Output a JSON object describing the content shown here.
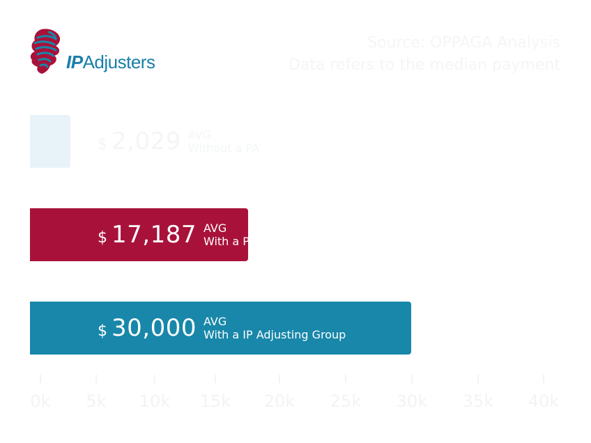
{
  "logo": {
    "ip": "IP",
    "rest": "Adjusters",
    "alt": "IP Adjusters logo"
  },
  "source": {
    "line1": "Source: OPPAGA Analysis",
    "line2": "Data refers to the median payment"
  },
  "colors": {
    "without_pa": "#e8f3f9",
    "with_pa": "#a8123a",
    "with_ip": "#1887a9",
    "faint_text": "#f3f5f7",
    "axis": "#f1f3f5"
  },
  "chart_data": {
    "type": "bar",
    "orientation": "horizontal",
    "categories": [
      "Without a PA",
      "With a PA",
      "With a IP Adjusting Group"
    ],
    "values": [
      2029,
      17187,
      30000
    ],
    "display_values": [
      "2,029",
      "17,187",
      "30,000"
    ],
    "currency": "$",
    "value_tag": "AVG",
    "xlim": [
      0,
      40000
    ],
    "x_ticks": [
      "0k",
      "5k",
      "10k",
      "15k",
      "20k",
      "25k",
      "30k",
      "35k",
      "40k"
    ],
    "grid": false,
    "legend": "none"
  }
}
